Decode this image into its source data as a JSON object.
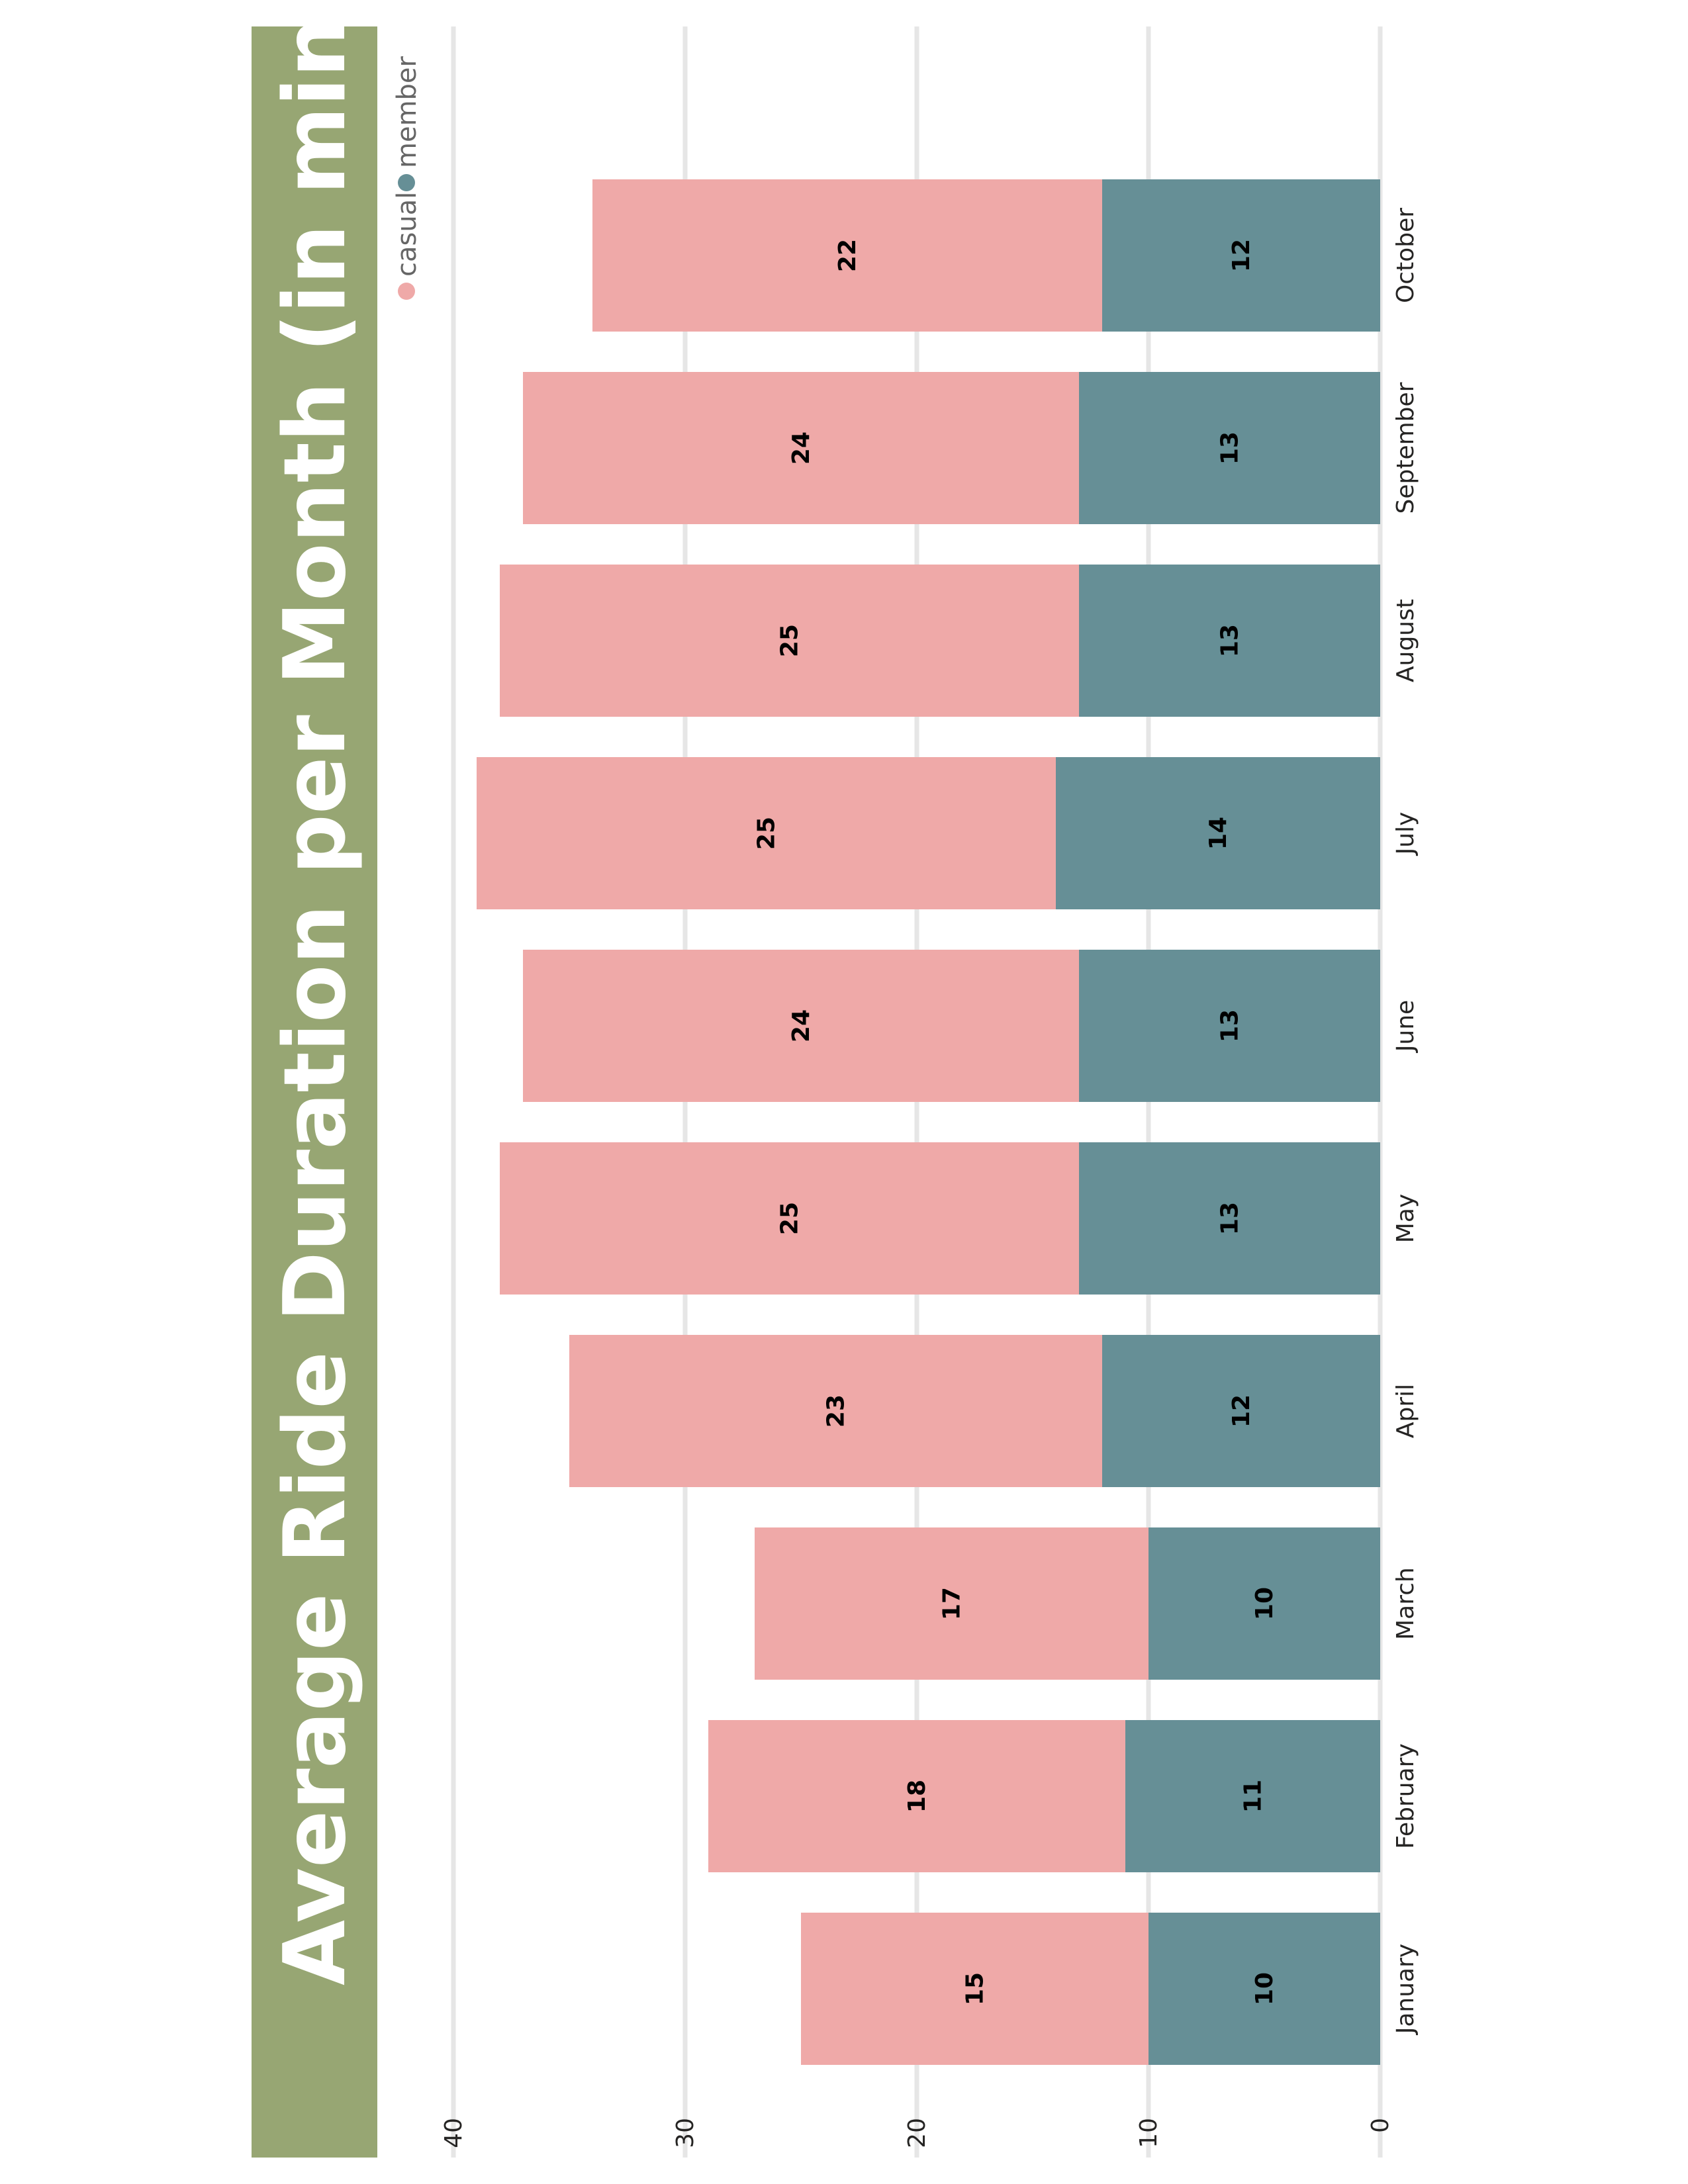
{
  "chart_data": {
    "type": "bar",
    "stacked": true,
    "orientation": "vertical-rotated",
    "title": "Average Ride Duration per Month (in min.)",
    "categories": [
      "January",
      "February",
      "March",
      "April",
      "May",
      "June",
      "July",
      "August",
      "September",
      "October"
    ],
    "series": [
      {
        "name": "member",
        "color": "#668f96",
        "values": [
          10,
          11,
          10,
          12,
          13,
          13,
          14,
          13,
          13,
          12
        ]
      },
      {
        "name": "casual",
        "color": "#efa9a8",
        "values": [
          15,
          18,
          17,
          23,
          25,
          24,
          25,
          25,
          24,
          22
        ]
      }
    ],
    "ylim": [
      0,
      40
    ],
    "yticks": [
      "0",
      "10",
      "20",
      "30",
      "40"
    ],
    "grid": true,
    "legend": "top",
    "title_background": "#97a673"
  }
}
